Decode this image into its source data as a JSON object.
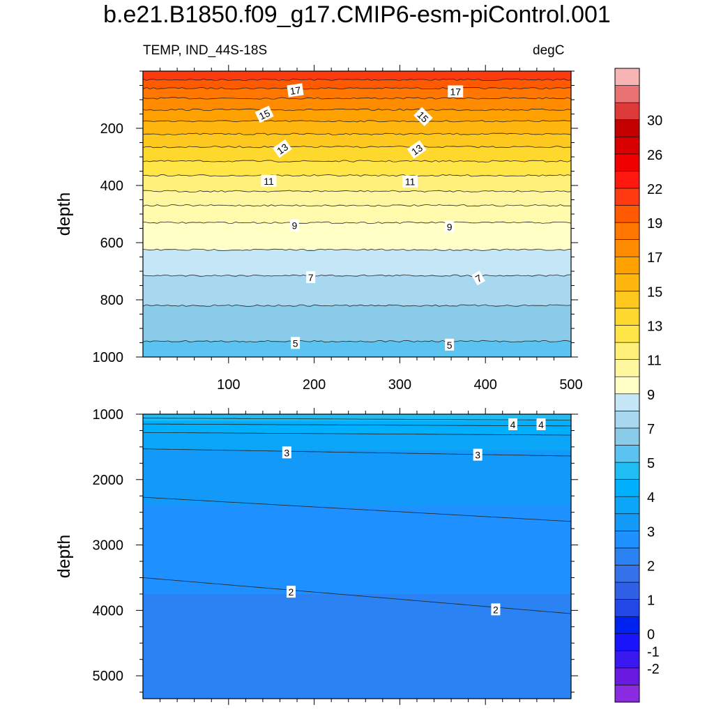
{
  "title": "b.e21.B1850.f09_g17.CMIP6-esm-piControl.001",
  "subtitle_left": "TEMP, IND_44S-18S",
  "subtitle_right": "degC",
  "colorbar": {
    "levels": [
      -3,
      -2,
      -1,
      0,
      0.5,
      1,
      1.5,
      2,
      2.5,
      3,
      3.5,
      4,
      4.5,
      5,
      6,
      7,
      8,
      9,
      10,
      11,
      12,
      13,
      14,
      15,
      16,
      17,
      18,
      19,
      20,
      22,
      24,
      26,
      28,
      30,
      32,
      34
    ],
    "colors": [
      "#8a2be2",
      "#6a19e0",
      "#3a18f0",
      "#1a14fa",
      "#0022f0",
      "#2448e8",
      "#3060e8",
      "#3572ea",
      "#2b82f2",
      "#1e90ff",
      "#1399f8",
      "#0ba6f7",
      "#00b0ff",
      "#20bdf5",
      "#5bc3f0",
      "#8acbea",
      "#a8d7f0",
      "#c4e6f6",
      "#ffffc6",
      "#fff6a0",
      "#fff07a",
      "#ffe546",
      "#ffd82e",
      "#ffc81e",
      "#ffb60e",
      "#ffa200",
      "#ff8c00",
      "#ff7600",
      "#ff5a00",
      "#ff3a10",
      "#ff1810",
      "#f00000",
      "#d80000",
      "#c40000",
      "#de3a3a",
      "#ea7272",
      "#f7b4b4"
    ],
    "labels": [
      {
        "text": "-2",
        "level": -2
      },
      {
        "text": "-1",
        "level": -1
      },
      {
        "text": "0",
        "level": 0
      },
      {
        "text": "1",
        "level": 1
      },
      {
        "text": "2",
        "level": 2
      },
      {
        "text": "3",
        "level": 3
      },
      {
        "text": "4",
        "level": 4
      },
      {
        "text": "5",
        "level": 5
      },
      {
        "text": "7",
        "level": 7
      },
      {
        "text": "9",
        "level": 9
      },
      {
        "text": "11",
        "level": 11
      },
      {
        "text": "13",
        "level": 13
      },
      {
        "text": "15",
        "level": 15
      },
      {
        "text": "17",
        "level": 17
      },
      {
        "text": "19",
        "level": 19
      },
      {
        "text": "22",
        "level": 22
      },
      {
        "text": "26",
        "level": 26
      },
      {
        "text": "30",
        "level": 30
      }
    ]
  },
  "chart_data": [
    {
      "type": "heatmap",
      "panel": "upper",
      "ylabel": "depth",
      "xlim": [
        0,
        500
      ],
      "ylim": [
        1000,
        0
      ],
      "xticks": [
        {
          "v": 100,
          "label": "100"
        },
        {
          "v": 200,
          "label": "200"
        },
        {
          "v": 300,
          "label": "300"
        },
        {
          "v": 400,
          "label": "400"
        },
        {
          "v": 500,
          "label": "500"
        }
      ],
      "yticks": [
        {
          "v": 200,
          "label": "200"
        },
        {
          "v": 400,
          "label": "400"
        },
        {
          "v": 600,
          "label": "600"
        },
        {
          "v": 800,
          "label": "800"
        },
        {
          "v": 1000,
          "label": "1000"
        }
      ],
      "bands": [
        {
          "top": 0,
          "bottom": 30,
          "color": "#ff3a10"
        },
        {
          "top": 30,
          "bottom": 60,
          "color": "#ff5a00"
        },
        {
          "top": 60,
          "bottom": 95,
          "color": "#ff7600"
        },
        {
          "top": 95,
          "bottom": 135,
          "color": "#ff8c00"
        },
        {
          "top": 135,
          "bottom": 175,
          "color": "#ffa200"
        },
        {
          "top": 175,
          "bottom": 220,
          "color": "#ffb60e"
        },
        {
          "top": 220,
          "bottom": 265,
          "color": "#ffc81e"
        },
        {
          "top": 265,
          "bottom": 315,
          "color": "#ffd82e"
        },
        {
          "top": 315,
          "bottom": 365,
          "color": "#ffe546"
        },
        {
          "top": 365,
          "bottom": 420,
          "color": "#fff07a"
        },
        {
          "top": 420,
          "bottom": 470,
          "color": "#fff6a0"
        },
        {
          "top": 470,
          "bottom": 530,
          "color": "#fffaac"
        },
        {
          "top": 530,
          "bottom": 625,
          "color": "#ffffc6"
        },
        {
          "top": 625,
          "bottom": 715,
          "color": "#c4e6f6"
        },
        {
          "top": 715,
          "bottom": 820,
          "color": "#a8d7f0"
        },
        {
          "top": 820,
          "bottom": 945,
          "color": "#8acbea"
        },
        {
          "top": 945,
          "bottom": 1000,
          "color": "#5bc3f0"
        }
      ],
      "contours": [
        {
          "depth": 30,
          "wiggle": 3
        },
        {
          "depth": 60,
          "wiggle": 3
        },
        {
          "depth": 95,
          "wiggle": 3
        },
        {
          "depth": 135,
          "wiggle": 3
        },
        {
          "depth": 175,
          "wiggle": 3
        },
        {
          "depth": 220,
          "wiggle": 3
        },
        {
          "depth": 265,
          "wiggle": 3
        },
        {
          "depth": 315,
          "wiggle": 3
        },
        {
          "depth": 365,
          "wiggle": 3
        },
        {
          "depth": 420,
          "wiggle": 3
        },
        {
          "depth": 470,
          "wiggle": 3
        },
        {
          "depth": 530,
          "wiggle": 3
        },
        {
          "depth": 625,
          "wiggle": 3
        },
        {
          "depth": 715,
          "wiggle": 3
        },
        {
          "depth": 820,
          "wiggle": 3
        },
        {
          "depth": 945,
          "wiggle": 3
        }
      ],
      "contour_labels": [
        {
          "text": "17",
          "x": 178,
          "y": 68,
          "rot": -8
        },
        {
          "text": "17",
          "x": 365,
          "y": 72,
          "rot": 0
        },
        {
          "text": "15",
          "x": 142,
          "y": 152,
          "rot": -25
        },
        {
          "text": "15",
          "x": 327,
          "y": 160,
          "rot": 45
        },
        {
          "text": "13",
          "x": 163,
          "y": 272,
          "rot": -35
        },
        {
          "text": "13",
          "x": 320,
          "y": 275,
          "rot": -35
        },
        {
          "text": "11",
          "x": 147,
          "y": 385,
          "rot": 0
        },
        {
          "text": "11",
          "x": 312,
          "y": 387,
          "rot": 0
        },
        {
          "text": "9",
          "x": 177,
          "y": 540,
          "rot": 0
        },
        {
          "text": "9",
          "x": 358,
          "y": 545,
          "rot": 0
        },
        {
          "text": "7",
          "x": 196,
          "y": 722,
          "rot": 0
        },
        {
          "text": "7",
          "x": 392,
          "y": 725,
          "rot": -30
        },
        {
          "text": "5",
          "x": 178,
          "y": 952,
          "rot": 0
        },
        {
          "text": "5",
          "x": 358,
          "y": 958,
          "rot": 0
        }
      ]
    },
    {
      "type": "heatmap",
      "panel": "lower",
      "ylabel": "depth",
      "xlim": [
        0,
        500
      ],
      "ylim": [
        5350,
        1000
      ],
      "xticks": [],
      "yticks": [
        {
          "v": 1000,
          "label": "1000"
        },
        {
          "v": 2000,
          "label": "2000"
        },
        {
          "v": 3000,
          "label": "3000"
        },
        {
          "v": 4000,
          "label": "4000"
        },
        {
          "v": 5000,
          "label": "5000"
        }
      ],
      "bands": [
        {
          "top": 1000,
          "bottom": 1100,
          "color": "#20bdf5"
        },
        {
          "top": 1100,
          "bottom": 1300,
          "color": "#00b0ff"
        },
        {
          "top": 1300,
          "bottom": 1550,
          "color": "#0ba6f7"
        },
        {
          "top": 1550,
          "bottom": 2400,
          "color": "#1399f8"
        },
        {
          "top": 2400,
          "bottom": 3750,
          "color": "#1e90ff"
        },
        {
          "top": 3750,
          "bottom": 5350,
          "color": "#2b82f2"
        }
      ],
      "contours": [
        {
          "d0": 1060,
          "d1": 1090
        },
        {
          "d0": 1150,
          "d1": 1180
        },
        {
          "d0": 1280,
          "d1": 1320
        },
        {
          "d0": 1530,
          "d1": 1640
        },
        {
          "d0": 2270,
          "d1": 2640
        },
        {
          "d0": 3500,
          "d1": 4050
        }
      ],
      "contour_labels": [
        {
          "text": "4",
          "x": 432,
          "y": 1160,
          "rot": 0
        },
        {
          "text": "4",
          "x": 465,
          "y": 1160,
          "rot": 0
        },
        {
          "text": "3",
          "x": 168,
          "y": 1590,
          "rot": 0
        },
        {
          "text": "3",
          "x": 391,
          "y": 1625,
          "rot": 0
        },
        {
          "text": "2",
          "x": 173,
          "y": 3720,
          "rot": 0
        },
        {
          "text": "2",
          "x": 412,
          "y": 3990,
          "rot": 0
        }
      ]
    }
  ]
}
